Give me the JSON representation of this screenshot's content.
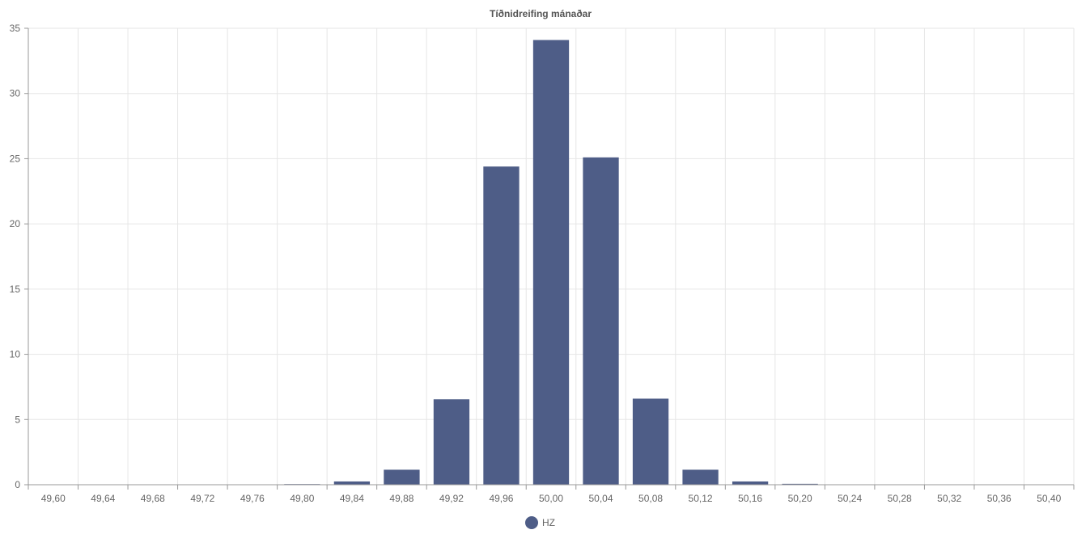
{
  "chart_data": {
    "type": "bar",
    "title": "Tíðnidreifing mánaðar",
    "xlabel": "",
    "ylabel": "",
    "categories": [
      "49,60",
      "49,64",
      "49,68",
      "49,72",
      "49,76",
      "49,80",
      "49,84",
      "49,88",
      "49,92",
      "49,96",
      "50,00",
      "50,04",
      "50,08",
      "50,12",
      "50,16",
      "50,20",
      "50,24",
      "50,28",
      "50,32",
      "50,36",
      "50,40"
    ],
    "series": [
      {
        "name": "HZ",
        "color": "#4e5d87",
        "values": [
          0,
          0,
          0,
          0,
          0,
          0.05,
          0.25,
          1.15,
          6.55,
          24.4,
          34.1,
          25.1,
          6.6,
          1.15,
          0.25,
          0.07,
          0.02,
          0,
          0,
          0,
          0
        ]
      }
    ],
    "ylim": [
      0,
      35
    ],
    "yticks": [
      "0",
      "5",
      "10",
      "15",
      "20",
      "25",
      "30",
      "35"
    ],
    "grid": true,
    "legend_position": "bottom"
  }
}
